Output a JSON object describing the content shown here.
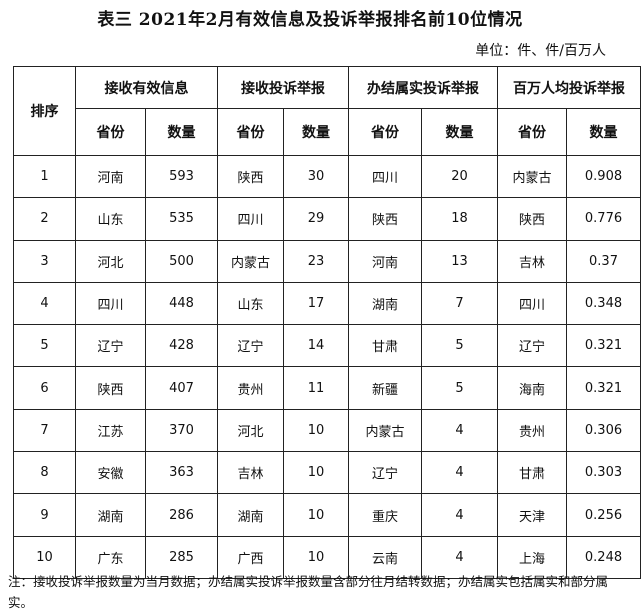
{
  "title": "表三 2021年2月有效信息及投诉举报排名前10位情况",
  "unit": "单位：件、件/百万人",
  "header": {
    "rank": "排序",
    "groups": [
      "接收有效信息",
      "接收投诉举报",
      "办结属实投诉举报",
      "百万人均投诉举报"
    ],
    "province": "省份",
    "count": "数量"
  },
  "rows": [
    [
      "1",
      "河南",
      "593",
      "陕西",
      "30",
      "四川",
      "20",
      "内蒙古",
      "0.908"
    ],
    [
      "2",
      "山东",
      "535",
      "四川",
      "29",
      "陕西",
      "18",
      "陕西",
      "0.776"
    ],
    [
      "3",
      "河北",
      "500",
      "内蒙古",
      "23",
      "河南",
      "13",
      "吉林",
      "0.37"
    ],
    [
      "4",
      "四川",
      "448",
      "山东",
      "17",
      "湖南",
      "7",
      "四川",
      "0.348"
    ],
    [
      "5",
      "辽宁",
      "428",
      "辽宁",
      "14",
      "甘肃",
      "5",
      "辽宁",
      "0.321"
    ],
    [
      "6",
      "陕西",
      "407",
      "贵州",
      "11",
      "新疆",
      "5",
      "海南",
      "0.321"
    ],
    [
      "7",
      "江苏",
      "370",
      "河北",
      "10",
      "内蒙古",
      "4",
      "贵州",
      "0.306"
    ],
    [
      "8",
      "安徽",
      "363",
      "吉林",
      "10",
      "辽宁",
      "4",
      "甘肃",
      "0.303"
    ],
    [
      "9",
      "湖南",
      "286",
      "湖南",
      "10",
      "重庆",
      "4",
      "天津",
      "0.256"
    ],
    [
      "10",
      "广东",
      "285",
      "广西",
      "10",
      "云南",
      "4",
      "上海",
      "0.248"
    ]
  ],
  "note": "注：接收投诉举报数量为当月数据；办结属实投诉举报数量含部分往月结转数据；办结属实包括属实和部分属实。"
}
